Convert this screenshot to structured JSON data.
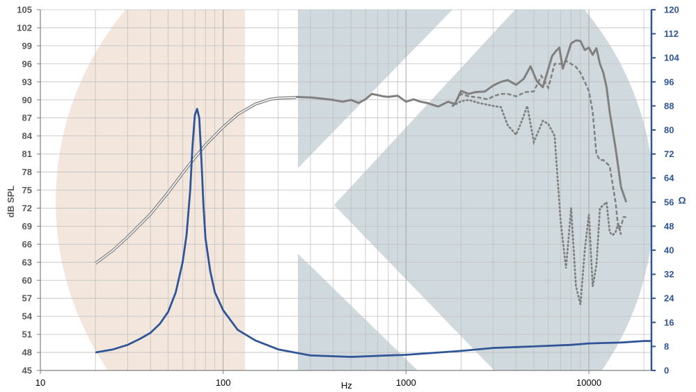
{
  "chart_data": {
    "type": "line",
    "title": "",
    "xlabel": "Hz",
    "ylabel_left": "dB SPL",
    "ylabel_right": "Ω",
    "x_scale": "log",
    "xlim": [
      10,
      22000
    ],
    "ylim_left": [
      45,
      105
    ],
    "ylim_right": [
      0,
      120
    ],
    "x_tick_labels": [
      "10",
      "100",
      "1000",
      "10000"
    ],
    "y_left_tick_labels": [
      "105",
      "102",
      "99",
      "96",
      "93",
      "90",
      "87",
      "84",
      "81",
      "78",
      "75",
      "72",
      "69",
      "66",
      "63",
      "60",
      "57",
      "54",
      "51",
      "48",
      "45"
    ],
    "y_right_tick_labels": [
      "120",
      "112",
      "104",
      "96",
      "88",
      "80",
      "72",
      "64",
      "56",
      "48",
      "40",
      "32",
      "24",
      "16",
      "8",
      "0"
    ],
    "grid": "vertical log gridlines and horizontal gridlines at left-axis ticks",
    "legend": "none",
    "colors": {
      "spl": "#808080",
      "impedance": "#2f5597",
      "left_axis_text": "#595959",
      "right_axis_text": "#2f5597",
      "watermark_band_left": "#f3e6dd",
      "watermark_band_right": "#d0d9de"
    },
    "series": [
      {
        "axis": "left",
        "style": "double",
        "x": [
          20,
          25,
          30,
          40,
          50,
          60,
          70,
          80,
          100,
          120,
          150,
          180,
          200,
          250
        ],
        "values": [
          62.8,
          65.0,
          67.2,
          71.0,
          74.6,
          77.8,
          80.4,
          82.5,
          85.5,
          87.6,
          89.3,
          90.1,
          90.3,
          90.4
        ]
      },
      {
        "axis": "left",
        "style": "solid",
        "x": [
          250,
          300,
          350,
          400,
          450,
          500,
          550,
          600,
          650,
          700,
          750,
          800,
          900,
          1000,
          1100,
          1200,
          1300,
          1500,
          1700,
          1850,
          2000,
          2200,
          2400,
          2700,
          3000,
          3300,
          3600,
          4000,
          4400,
          4800,
          5200,
          5600,
          6000,
          6300,
          6600,
          6900,
          7200,
          7600,
          8000,
          8500,
          9000,
          9500,
          10000,
          10500,
          11000,
          11500,
          12000,
          12500,
          13000,
          14000,
          15000,
          16000
        ],
        "values": [
          90.5,
          90.4,
          90.2,
          90.0,
          89.7,
          90.0,
          89.5,
          90.1,
          91.0,
          90.8,
          90.6,
          90.5,
          90.7,
          89.7,
          90.1,
          89.7,
          89.5,
          88.9,
          89.7,
          89.3,
          91.5,
          91.0,
          91.3,
          91.4,
          92.4,
          93.0,
          93.3,
          92.5,
          93.5,
          95.6,
          93.1,
          92.1,
          95.2,
          97.3,
          98.1,
          98.7,
          95.2,
          97.3,
          99.4,
          99.9,
          99.8,
          98.3,
          98.7,
          97.5,
          98.6,
          96.0,
          94.5,
          92.1,
          88.0,
          82.0,
          75.5,
          73.0
        ]
      },
      {
        "axis": "left",
        "style": "dashed",
        "x": [
          1800,
          2000,
          2200,
          2500,
          2800,
          3000,
          3300,
          3600,
          4000,
          4500,
          5000,
          5500,
          6000,
          6500,
          7000,
          7500,
          8000,
          8500,
          9000,
          9500,
          10000,
          10500,
          11000,
          11500,
          12000,
          13000,
          14000,
          14500,
          15000,
          15500,
          16000
        ],
        "values": [
          89.0,
          91.0,
          90.6,
          90.4,
          90.1,
          90.6,
          91.0,
          91.0,
          90.6,
          91.3,
          91.4,
          94.0,
          92.0,
          96.0,
          96.0,
          96.5,
          96.0,
          95.5,
          94.5,
          93.0,
          91.5,
          88.0,
          81.0,
          80.0,
          80.0,
          79.0,
          73.0,
          68.5,
          69.0,
          70.5,
          70.5
        ]
      },
      {
        "axis": "left",
        "style": "dotted",
        "x": [
          1800,
          2000,
          2200,
          2500,
          2800,
          3000,
          3300,
          3600,
          4000,
          4300,
          4600,
          5000,
          5300,
          5600,
          6000,
          6500,
          7000,
          7500,
          8000,
          8500,
          9000,
          9500,
          10000,
          10500,
          11000,
          11500,
          12000,
          12500,
          13000,
          13500,
          14000,
          14500,
          15000
        ],
        "values": [
          89.0,
          89.8,
          90.0,
          89.5,
          89.2,
          89.0,
          88.8,
          85.8,
          84.2,
          86.5,
          89.0,
          83.0,
          84.8,
          86.5,
          86.0,
          84.0,
          70.0,
          62.0,
          72.0,
          59.0,
          56.0,
          65.0,
          71.0,
          59.0,
          62.5,
          72.0,
          72.5,
          73.0,
          68.0,
          67.5,
          68.0,
          69.5,
          67.5
        ]
      },
      {
        "axis": "right",
        "style": "impedance",
        "x": [
          20,
          25,
          30,
          35,
          40,
          45,
          50,
          55,
          60,
          63,
          66,
          68,
          70,
          72,
          74,
          76,
          78,
          80,
          85,
          90,
          100,
          120,
          150,
          200,
          300,
          500,
          800,
          1000,
          2000,
          3000,
          5000,
          8000,
          10000,
          15000,
          20000,
          22000
        ],
        "values": [
          6.0,
          7.0,
          8.5,
          10.5,
          12.5,
          15.5,
          19.5,
          26.0,
          36.0,
          45.0,
          60.0,
          75.0,
          85.0,
          87.0,
          84.0,
          70.0,
          55.0,
          44.0,
          33.0,
          26.0,
          20.0,
          13.5,
          10.0,
          7.0,
          5.0,
          4.5,
          5.0,
          5.2,
          6.5,
          7.5,
          8.0,
          8.5,
          9.0,
          9.3,
          9.8,
          9.8
        ]
      }
    ]
  }
}
